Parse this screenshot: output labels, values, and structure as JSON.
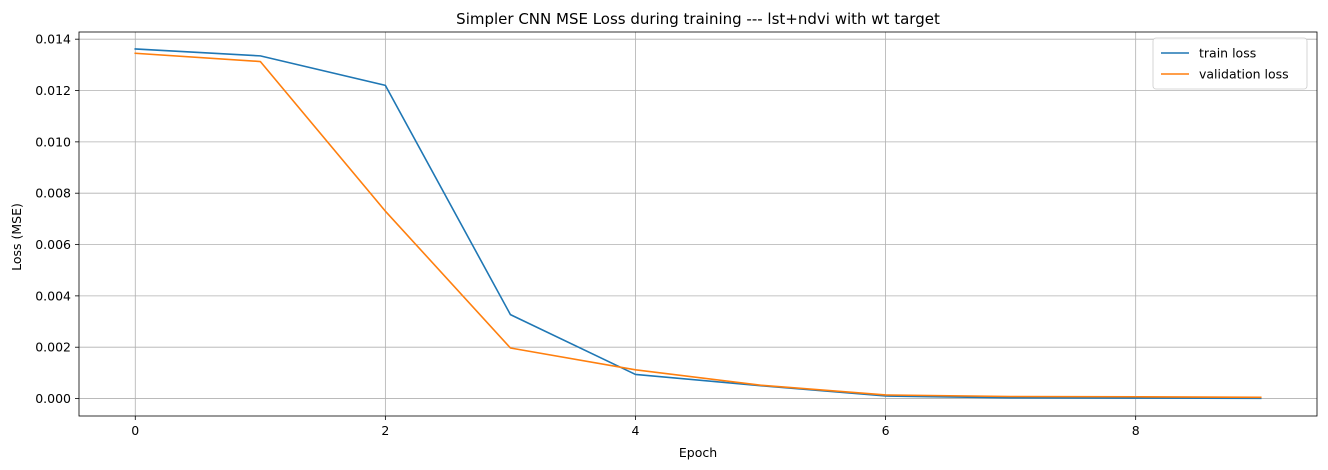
{
  "chart_data": {
    "type": "line",
    "title": "Simpler CNN MSE Loss during training --- lst+ndvi with wt target",
    "xlabel": "Epoch",
    "ylabel": "Loss (MSE)",
    "x": [
      0,
      1,
      2,
      3,
      4,
      5,
      6,
      7,
      8,
      9
    ],
    "xlim": [
      -0.45,
      9.45
    ],
    "ylim": [
      -0.00068,
      0.01428
    ],
    "xticks": [
      0,
      2,
      4,
      6,
      8
    ],
    "xtick_labels": [
      "0",
      "2",
      "4",
      "6",
      "8"
    ],
    "yticks": [
      0.0,
      0.002,
      0.004,
      0.006,
      0.008,
      0.01,
      0.012,
      0.014
    ],
    "ytick_labels": [
      "0.000",
      "0.002",
      "0.004",
      "0.006",
      "0.008",
      "0.010",
      "0.012",
      "0.014"
    ],
    "grid": true,
    "legend_position": "top-right",
    "series": [
      {
        "name": "train loss",
        "color": "#1f77b4",
        "values": [
          0.01362,
          0.01335,
          0.0122,
          0.00327,
          0.00094,
          0.0005,
          0.0001,
          3e-05,
          2e-05,
          1e-05
        ]
      },
      {
        "name": "validation loss",
        "color": "#ff7f0e",
        "values": [
          0.01345,
          0.01313,
          0.0073,
          0.00197,
          0.00112,
          0.00052,
          0.00014,
          8e-05,
          7e-05,
          5e-05
        ]
      }
    ]
  }
}
